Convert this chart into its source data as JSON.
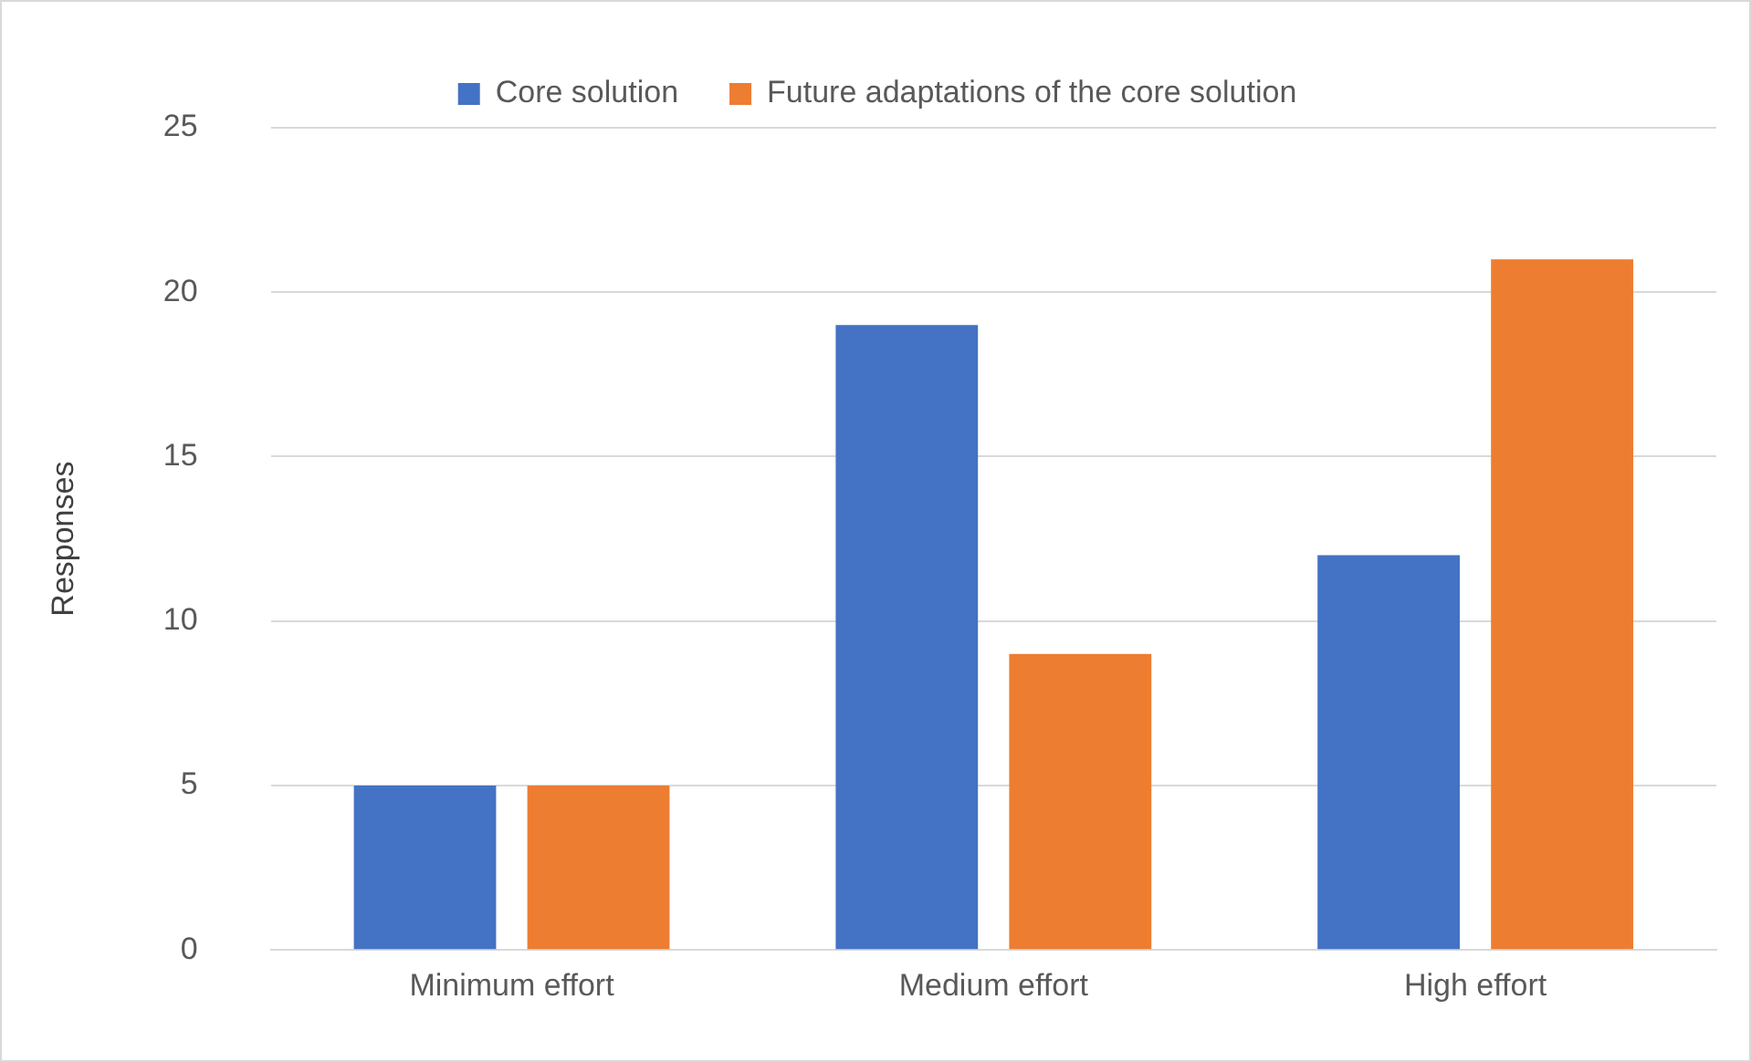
{
  "chart_data": {
    "type": "bar",
    "ylabel": "Responses",
    "categories": [
      "Minimum effort",
      "Medium effort",
      "High effort"
    ],
    "series": [
      {
        "name": "Core solution",
        "color": "#4472c4",
        "values": [
          5,
          19,
          12
        ]
      },
      {
        "name": "Future adaptations of the core solution",
        "color": "#ed7d31",
        "values": [
          5,
          9,
          21
        ]
      }
    ],
    "ylim": [
      0,
      25
    ],
    "yticks": [
      0,
      5,
      10,
      15,
      20,
      25
    ],
    "grid": "y",
    "legend": "top"
  }
}
